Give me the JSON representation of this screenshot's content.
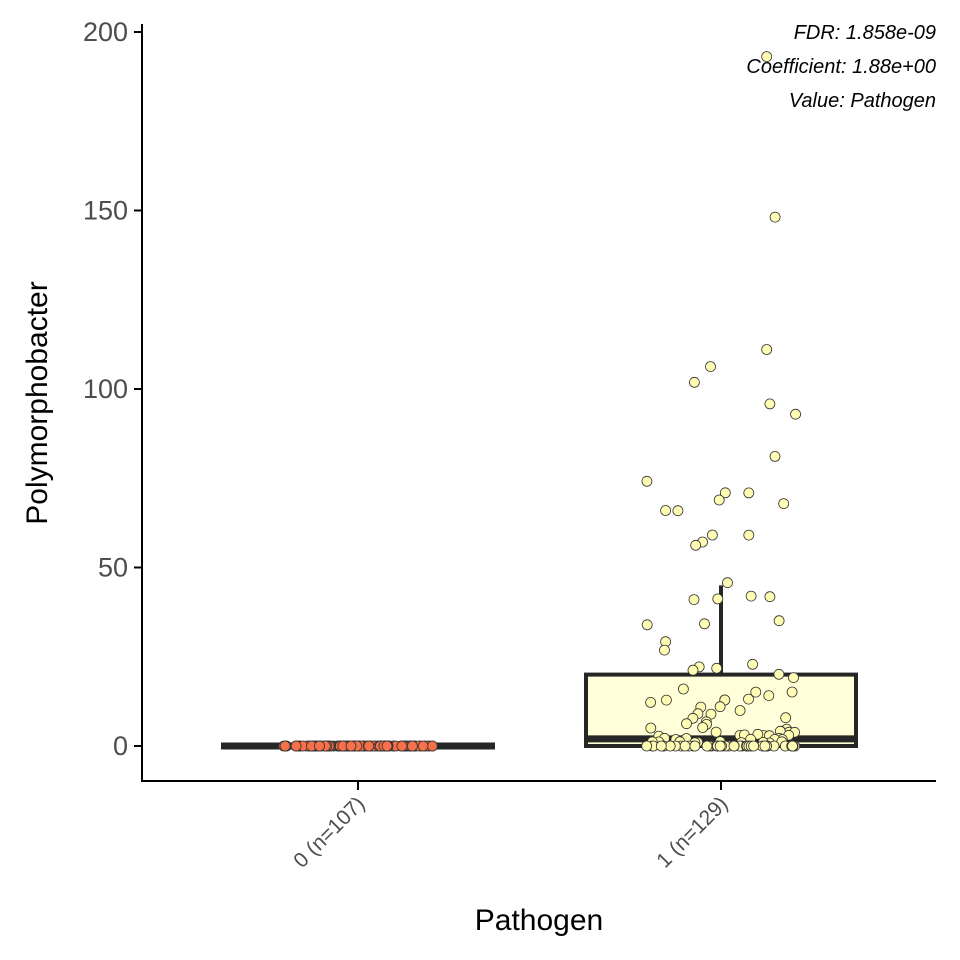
{
  "chart_data": {
    "type": "box",
    "title": "",
    "xlabel": "Pathogen",
    "ylabel": "Polymorphobacter",
    "ylim": [
      -9.5,
      203
    ],
    "yticks": [
      0,
      50,
      100,
      150,
      200
    ],
    "grid": false,
    "legend": "none",
    "annotations": [
      "FDR: 1.858e-09",
      "Coefficient: 1.88e+00",
      "Value: Pathogen"
    ],
    "categories": [
      "0 (n=107)",
      "1 (n=129)"
    ],
    "boxes": [
      {
        "category": "0 (n=107)",
        "q1": 0,
        "median": 0,
        "q3": 0,
        "whisker_low": 0,
        "whisker_high": 0,
        "fill": "#f6714a",
        "box_fill": "#fee0d2"
      },
      {
        "category": "1 (n=129)",
        "q1": 0,
        "median": 2,
        "q3": 20,
        "whisker_low": 0,
        "whisker_high": 45,
        "fill": "#fffcb4",
        "box_fill": "#ffffd9"
      }
    ],
    "points": [
      {
        "group": 0,
        "values": [
          0,
          0,
          0,
          0,
          0,
          0,
          0,
          0,
          0,
          0,
          0,
          0,
          0,
          0,
          0,
          0,
          0,
          0,
          0,
          0,
          0,
          0,
          0,
          0,
          0,
          0,
          0,
          0,
          0,
          0,
          0,
          0,
          0,
          0,
          0,
          0,
          0,
          0,
          0,
          0,
          0,
          0,
          0,
          0,
          0,
          0,
          0,
          0,
          0,
          0,
          0,
          0,
          0,
          0,
          0,
          0,
          0,
          0,
          0,
          0,
          0,
          0,
          0,
          0,
          0,
          0,
          0,
          0,
          0,
          0,
          0,
          0,
          0,
          0,
          0,
          0,
          0,
          0,
          0,
          0,
          0,
          0,
          0,
          0,
          0,
          0,
          0,
          0,
          0,
          0,
          0,
          0,
          0,
          0,
          0,
          0,
          0,
          0,
          0,
          0,
          0,
          0,
          0,
          0,
          0,
          0,
          0
        ]
      },
      {
        "group": 1,
        "values": [
          193,
          148,
          111,
          106,
          102,
          96,
          93,
          81,
          74,
          71,
          71,
          69,
          68,
          66,
          66,
          59,
          59,
          57,
          56,
          46,
          42,
          42,
          41,
          41,
          35,
          34,
          34,
          29,
          27,
          23,
          22,
          22,
          21,
          20,
          19,
          16,
          15,
          15,
          14,
          13,
          13,
          13,
          13,
          12,
          11,
          11,
          10,
          9,
          9,
          8,
          8,
          7,
          6,
          6,
          5,
          5,
          5,
          4,
          4,
          4,
          4,
          4,
          3,
          3,
          3,
          3,
          3,
          3,
          3,
          2,
          2,
          2,
          2,
          2,
          2,
          2,
          1,
          1,
          1,
          1,
          1,
          1,
          1,
          1,
          1,
          1,
          0,
          0,
          0,
          0,
          0,
          0,
          0,
          0,
          0,
          0,
          0,
          0,
          0,
          0,
          0,
          0,
          0,
          0,
          0,
          0,
          0,
          0,
          0,
          0,
          0,
          0,
          0,
          0,
          0,
          0,
          0,
          0,
          0,
          0,
          0,
          0,
          0,
          0,
          0,
          0,
          0,
          0,
          0
        ]
      }
    ],
    "colors": {
      "axis": "#000000",
      "box_line": "#262626",
      "point_stroke": "#333333"
    }
  }
}
